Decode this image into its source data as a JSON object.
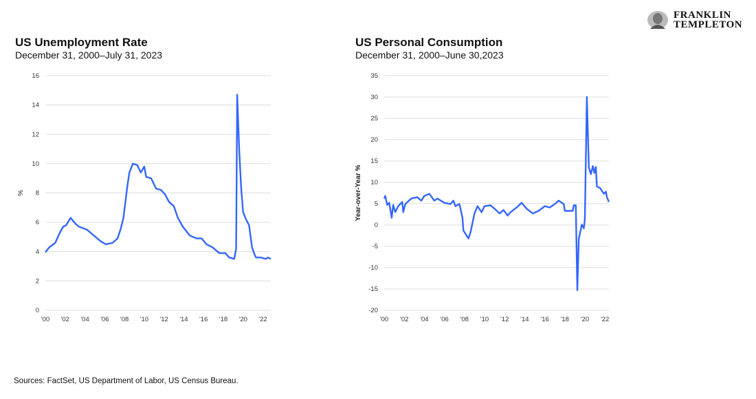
{
  "brand": {
    "name_line1": "FRANKLIN",
    "name_line2": "TEMPLETON"
  },
  "source_note": "Sources: FactSet, US Department of Labor, US Census Bureau.",
  "line_color": "#3366ff",
  "chart_data": [
    {
      "type": "line",
      "title": "US Unemployment Rate",
      "subtitle": "December 31, 2000–July 31, 2023",
      "ylabel": "%",
      "xlabel": "",
      "ylim": [
        0,
        16
      ],
      "yticks": [
        0,
        2,
        4,
        6,
        8,
        10,
        12,
        14,
        16
      ],
      "xlim": [
        2000,
        2022.8
      ],
      "xticks": [
        2000,
        2002,
        2004,
        2006,
        2008,
        2010,
        2012,
        2014,
        2016,
        2018,
        2020,
        2022
      ],
      "xtick_labels": [
        "'00",
        "'02",
        "'04",
        "'06",
        "'08",
        "'10",
        "'12",
        "'14",
        "'16",
        "'18",
        "'20",
        "'22"
      ],
      "grid": true,
      "x": [
        2000,
        2000.4,
        2001,
        2001.4,
        2001.8,
        2002.1,
        2002.55,
        2003.05,
        2003.4,
        2004.2,
        2004.9,
        2005.6,
        2006.1,
        2006.8,
        2007.3,
        2007.6,
        2007.9,
        2008.3,
        2008.5,
        2008.85,
        2009.3,
        2009.65,
        2010,
        2010.2,
        2010.7,
        2011.2,
        2011.7,
        2012.1,
        2012.5,
        2013,
        2013.4,
        2013.9,
        2014.6,
        2015.3,
        2015.8,
        2016.3,
        2016.9,
        2017.6,
        2018.2,
        2018.6,
        2019.1,
        2019.3,
        2019.4,
        2019.6,
        2019.8,
        2020,
        2020.3,
        2020.6,
        2020.9,
        2021.1,
        2021.3,
        2021.8,
        2022.3,
        2022.5,
        2022.8
      ],
      "series": [
        {
          "values": [
            3.95,
            4.3,
            4.6,
            5.2,
            5.7,
            5.8,
            6.3,
            5.9,
            5.7,
            5.5,
            5.1,
            4.7,
            4.5,
            4.6,
            4.9,
            5.5,
            6.3,
            8.5,
            9.4,
            10.0,
            9.9,
            9.4,
            9.8,
            9.1,
            9.0,
            8.3,
            8.2,
            7.9,
            7.4,
            7.1,
            6.3,
            5.7,
            5.1,
            4.9,
            4.9,
            4.5,
            4.3,
            3.9,
            3.9,
            3.6,
            3.5,
            4.2,
            14.7,
            11.0,
            8.4,
            6.7,
            6.2,
            5.8,
            4.3,
            3.9,
            3.6,
            3.6,
            3.5,
            3.6,
            3.5
          ]
        }
      ]
    },
    {
      "type": "line",
      "title": "US Personal Consumption",
      "subtitle": "December 31, 2000–June 30,2023",
      "ylabel": "Year-over-Year %",
      "xlabel": "",
      "ylim": [
        -20,
        35
      ],
      "yticks": [
        -20,
        -15,
        -10,
        -5,
        0,
        5,
        10,
        15,
        20,
        25,
        30,
        35
      ],
      "xlim": [
        2000,
        2022.4
      ],
      "xticks": [
        2000,
        2002,
        2004,
        2006,
        2008,
        2010,
        2012,
        2014,
        2016,
        2018,
        2020,
        2022
      ],
      "xtick_labels": [
        "'00",
        "'02",
        "'04",
        "'06",
        "'08",
        "'10",
        "'12",
        "'14",
        "'16",
        "'18",
        "'20",
        "'22"
      ],
      "grid": true,
      "x": [
        2000,
        2000.1,
        2000.3,
        2000.5,
        2000.75,
        2000.9,
        2001.1,
        2001.4,
        2001.8,
        2001.9,
        2002.1,
        2002.7,
        2003.3,
        2003.7,
        2004,
        2004.5,
        2005,
        2005.3,
        2006,
        2006.6,
        2006.9,
        2007.1,
        2007.5,
        2007.8,
        2007.9,
        2008.4,
        2008.6,
        2009,
        2009.3,
        2009.7,
        2010,
        2010.6,
        2011,
        2011.5,
        2011.9,
        2012.3,
        2012.6,
        2013.2,
        2013.7,
        2014.2,
        2014.8,
        2015.4,
        2016,
        2016.5,
        2017,
        2017.4,
        2017.9,
        2018,
        2018.8,
        2018.9,
        2019.1,
        2019.25,
        2019.4,
        2019.7,
        2019.9,
        2020,
        2020.2,
        2020.4,
        2020.6,
        2020.8,
        2020.95,
        2021.1,
        2021.2,
        2021.5,
        2021.9,
        2022.1,
        2022.2,
        2022.4
      ],
      "series": [
        {
          "values": [
            6.2,
            6.8,
            4.7,
            5.2,
            1.7,
            4.7,
            3.0,
            4.4,
            5.4,
            3.0,
            4.9,
            6.2,
            6.5,
            5.7,
            6.8,
            7.3,
            5.7,
            6.2,
            5.2,
            4.9,
            5.7,
            4.4,
            4.9,
            1.7,
            -1.3,
            -3.2,
            -1.8,
            2.7,
            4.4,
            3.0,
            4.4,
            4.6,
            3.8,
            2.7,
            3.5,
            2.2,
            3.0,
            4.1,
            5.2,
            3.8,
            2.7,
            3.3,
            4.4,
            4.1,
            4.9,
            5.7,
            4.9,
            3.3,
            3.3,
            4.6,
            4.6,
            -15.3,
            -3.2,
            0.1,
            -0.8,
            1.4,
            30.0,
            13.5,
            11.9,
            13.8,
            12.2,
            13.6,
            9.0,
            8.7,
            7.3,
            7.8,
            6.5,
            5.4
          ]
        }
      ]
    }
  ]
}
